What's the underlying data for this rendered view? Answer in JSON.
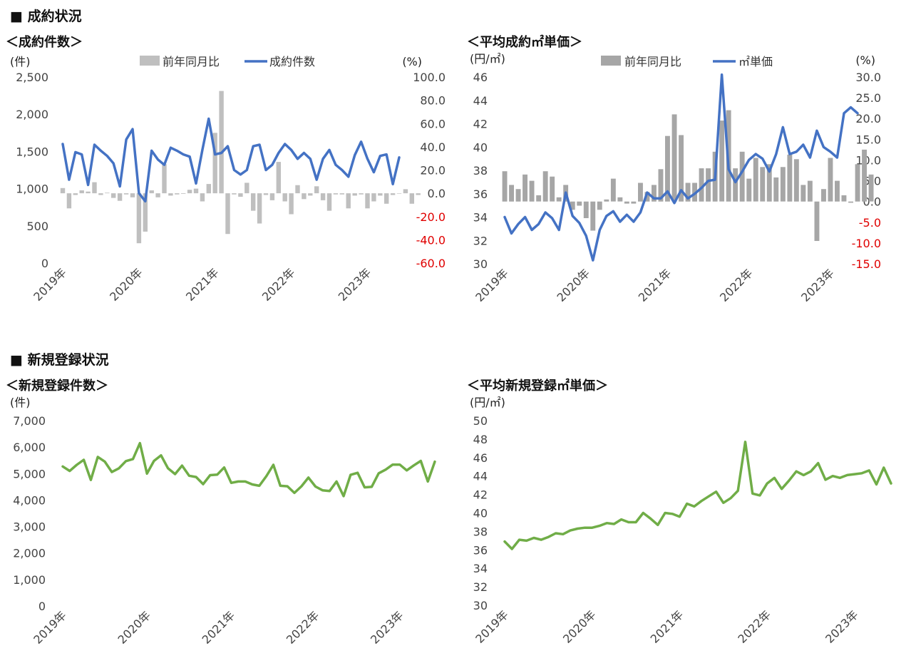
{
  "sections": {
    "contract": "■ 成約状況",
    "new_listing": "■ 新規登録状況"
  },
  "chart_data": [
    {
      "id": "c1",
      "type": "bar+line",
      "title": "＜成約件数＞",
      "left_unit": "(件)",
      "right_unit": "(%)",
      "left_ticks": [
        "2,500",
        "2,000",
        "1,500",
        "1,000",
        "500",
        "0"
      ],
      "right_ticks": [
        "100.0",
        "80.0",
        "60.0",
        "40.0",
        "20.0",
        "0.0",
        "-20.0",
        "-40.0",
        "-60.0"
      ],
      "ylim_left": [
        0,
        2500
      ],
      "ylim_right": [
        -60,
        100
      ],
      "x_labels": [
        "2019年",
        "2020年",
        "2021年",
        "2022年",
        "2023年"
      ],
      "x_label_index": [
        0,
        12,
        24,
        36,
        48
      ],
      "colors": {
        "bar": "#bfbfbf",
        "line": "#4472c4"
      },
      "series": [
        {
          "name": "前年同月比",
          "kind": "bar",
          "axis": "right",
          "values": [
            4.5,
            -13,
            -1.5,
            2.5,
            1.5,
            9.5,
            -1.5,
            0.5,
            -4,
            -6.5,
            -1,
            -3.5,
            -43,
            -33,
            2.5,
            -3.5,
            25,
            -2,
            -1,
            -0.5,
            3,
            4,
            -7,
            8,
            52,
            88,
            -35,
            -1,
            -3,
            9,
            -15,
            -26,
            -1.5,
            -6,
            27,
            -7,
            -18,
            7,
            -5,
            -2,
            6,
            -6,
            -15,
            -1,
            -1,
            -13,
            -2,
            -1,
            -13,
            -7,
            -2,
            -9,
            -1.5,
            0,
            3.5,
            -9,
            -1.5
          ]
        },
        {
          "name": "成約件数",
          "kind": "line",
          "axis": "left",
          "values": [
            1600,
            1120,
            1490,
            1460,
            1050,
            1590,
            1510,
            1440,
            1340,
            1030,
            1660,
            1800,
            940,
            830,
            1510,
            1390,
            1320,
            1550,
            1510,
            1460,
            1430,
            1070,
            1520,
            1940,
            1460,
            1480,
            1570,
            1250,
            1190,
            1250,
            1570,
            1590,
            1250,
            1320,
            1480,
            1600,
            1520,
            1400,
            1480,
            1400,
            1120,
            1400,
            1520,
            1320,
            1250,
            1160,
            1450,
            1630,
            1400,
            1220,
            1440,
            1460,
            1060,
            1420
          ]
        }
      ]
    },
    {
      "id": "c2",
      "type": "bar+line",
      "title": "＜平均成約㎡単価＞",
      "left_unit": "(円/㎡)",
      "right_unit": "(%)",
      "left_ticks": [
        "46",
        "44",
        "42",
        "40",
        "38",
        "36",
        "34",
        "32",
        "30"
      ],
      "right_ticks": [
        "30.0",
        "25.0",
        "20.0",
        "15.0",
        "10.0",
        "5.0",
        "0.0",
        "-5.0",
        "-10.0",
        "-15.0"
      ],
      "ylim_left": [
        30,
        46
      ],
      "ylim_right": [
        -15,
        30
      ],
      "x_labels": [
        "2019年",
        "2020年",
        "2021年",
        "2022年",
        "2023年"
      ],
      "x_label_index": [
        0,
        12,
        24,
        36,
        48
      ],
      "colors": {
        "bar": "#a6a6a6",
        "line": "#4472c4"
      },
      "series": [
        {
          "name": "前年同月比",
          "kind": "bar",
          "axis": "right",
          "values": [
            7.3,
            4,
            3,
            6.5,
            5,
            1.5,
            7.3,
            6,
            1,
            4,
            -2,
            -1,
            -4,
            -7,
            -2,
            0.5,
            5.5,
            1,
            -0.5,
            -0.5,
            4.5,
            2.3,
            4,
            7.8,
            15.8,
            21,
            16,
            4.5,
            4.5,
            8,
            8,
            12,
            19.5,
            22,
            8,
            12,
            5.5,
            10.5,
            8.3,
            9,
            5.8,
            8.3,
            11.3,
            10.2,
            4,
            5,
            -9.5,
            3,
            10.5,
            5,
            1.5,
            -0.3,
            9,
            12.5,
            6.5
          ]
        },
        {
          "name": "㎡単価",
          "kind": "line",
          "axis": "left",
          "values": [
            34,
            32.6,
            33.4,
            34,
            32.9,
            33.4,
            34.4,
            33.9,
            32.9,
            36.1,
            34.1,
            33.5,
            32.4,
            30.3,
            32.9,
            34.1,
            34.5,
            33.6,
            34.2,
            33.6,
            34.4,
            36.1,
            35.6,
            35.6,
            36.2,
            35.2,
            36.3,
            35.6,
            36,
            36.5,
            37.1,
            37.2,
            46.2,
            38.1,
            37,
            37.9,
            38.9,
            39.4,
            39,
            37.9,
            39.4,
            41.7,
            39.4,
            39.6,
            40.2,
            39.1,
            41.4,
            40,
            39.6,
            39.1,
            42.9,
            43.4,
            42.9
          ]
        }
      ]
    },
    {
      "id": "c3",
      "type": "line",
      "title": "＜新規登録件数＞",
      "left_unit": "(件)",
      "left_ticks": [
        "7,000",
        "6,000",
        "5,000",
        "4,000",
        "3,000",
        "2,000",
        "1,000",
        "0"
      ],
      "ylim_left": [
        0,
        7000
      ],
      "x_labels": [
        "2019年",
        "2020年",
        "2021年",
        "2022年",
        "2023年"
      ],
      "x_label_index": [
        0,
        12,
        24,
        36,
        48
      ],
      "colors": {
        "line": "#70ad47"
      },
      "series": [
        {
          "name": "新規登録件数",
          "kind": "line",
          "axis": "left",
          "values": [
            5270,
            5100,
            5330,
            5520,
            4760,
            5630,
            5450,
            5060,
            5200,
            5470,
            5550,
            6150,
            5000,
            5480,
            5690,
            5200,
            4980,
            5300,
            4920,
            4870,
            4600,
            4940,
            4960,
            5230,
            4650,
            4700,
            4700,
            4590,
            4540,
            4900,
            5330,
            4540,
            4520,
            4270,
            4520,
            4850,
            4510,
            4370,
            4340,
            4700,
            4150,
            4950,
            5030,
            4480,
            4500,
            5010,
            5150,
            5340,
            5340,
            5120,
            5310,
            5480,
            4700,
            5450
          ]
        }
      ]
    },
    {
      "id": "c4",
      "type": "line",
      "title": "＜平均新規登録㎡単価＞",
      "left_unit": "(円/㎡)",
      "left_ticks": [
        "50",
        "48",
        "46",
        "44",
        "42",
        "40",
        "38",
        "36",
        "34",
        "32",
        "30"
      ],
      "ylim_left": [
        30,
        50
      ],
      "x_labels": [
        "2019年",
        "2020年",
        "2021年",
        "2022年",
        "2023年"
      ],
      "x_label_index": [
        0,
        12,
        24,
        36,
        48
      ],
      "colors": {
        "line": "#70ad47"
      },
      "series": [
        {
          "name": "平均新規登録㎡単価",
          "kind": "line",
          "axis": "left",
          "values": [
            36.9,
            36.1,
            37.1,
            37,
            37.3,
            37.1,
            37.4,
            37.8,
            37.7,
            38.1,
            38.3,
            38.4,
            38.4,
            38.6,
            38.9,
            38.8,
            39.3,
            39,
            39,
            40,
            39.4,
            38.7,
            40,
            39.9,
            39.6,
            41,
            40.7,
            41.3,
            41.8,
            42.3,
            41.1,
            41.6,
            42.4,
            47.7,
            42.1,
            41.9,
            43.2,
            43.8,
            42.6,
            43.5,
            44.5,
            44.1,
            44.5,
            45.4,
            43.6,
            44,
            43.8,
            44.1,
            44.2,
            44.3,
            44.6,
            43.1,
            44.9,
            43.2
          ]
        }
      ]
    }
  ]
}
